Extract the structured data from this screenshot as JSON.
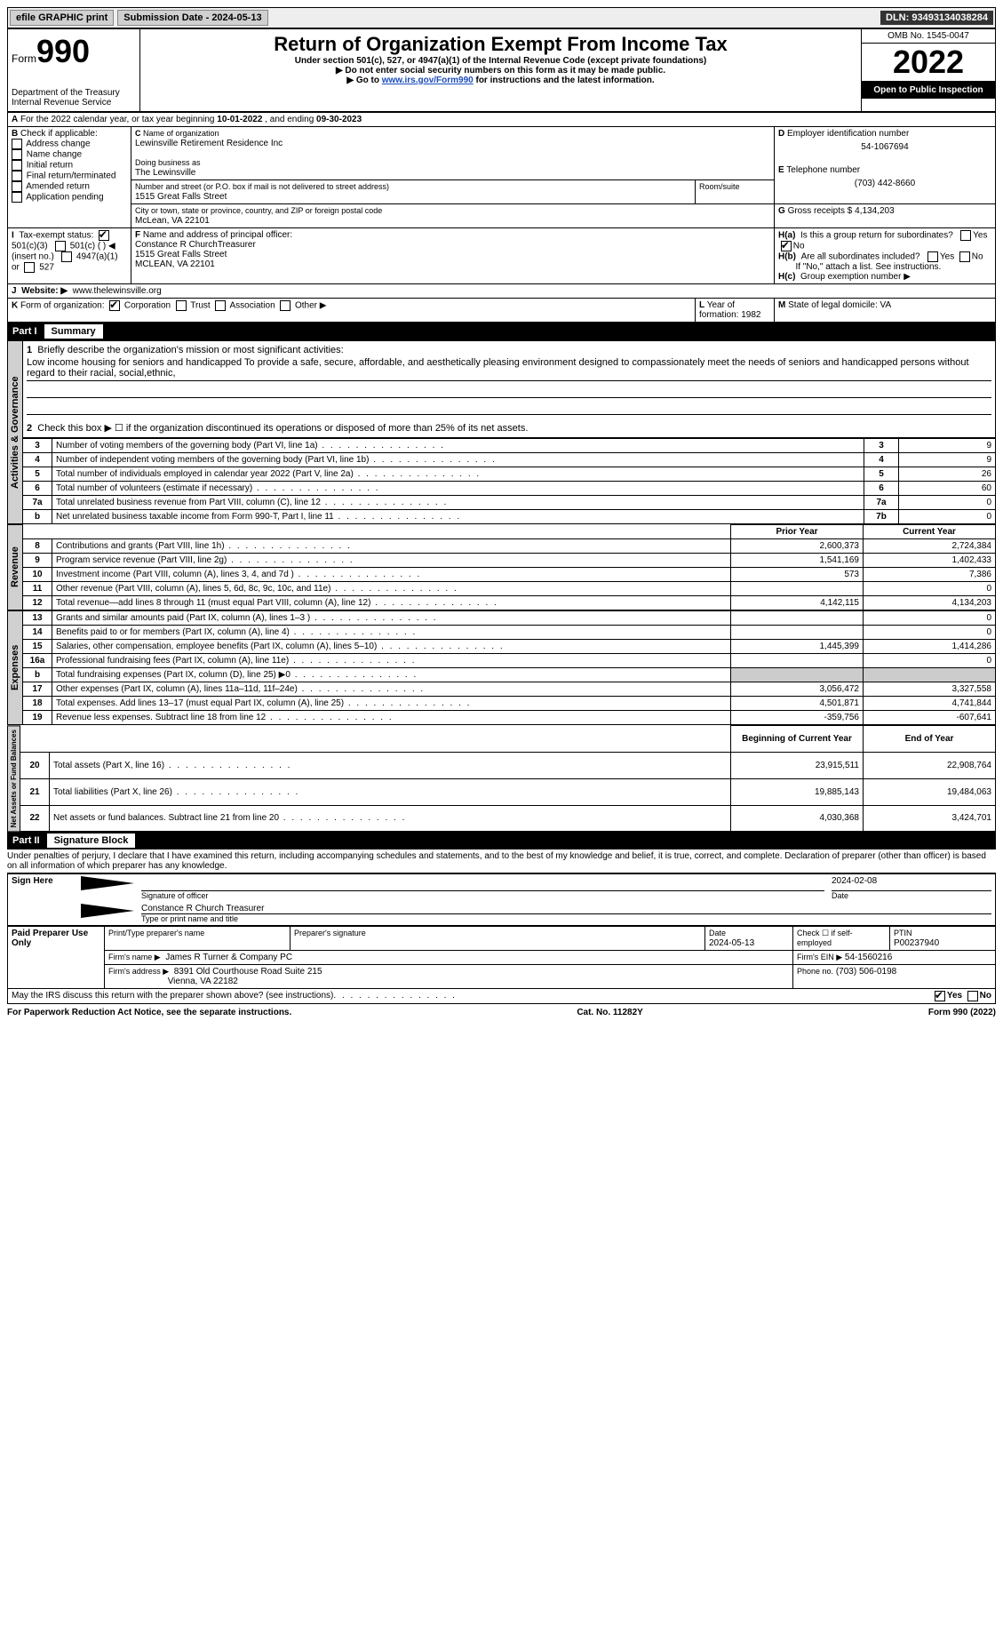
{
  "top": {
    "efile": "efile GRAPHIC print",
    "submission": "Submission Date - 2024-05-13",
    "dln": "DLN: 93493134038284"
  },
  "header": {
    "form_prefix": "Form",
    "form_number": "990",
    "dept": "Department of the Treasury",
    "irs": "Internal Revenue Service",
    "title": "Return of Organization Exempt From Income Tax",
    "sub1": "Under section 501(c), 527, or 4947(a)(1) of the Internal Revenue Code (except private foundations)",
    "sub2": "▶ Do not enter social security numbers on this form as it may be made public.",
    "sub3_pre": "▶ Go to ",
    "sub3_link": "www.irs.gov/Form990",
    "sub3_post": " for instructions and the latest information.",
    "omb": "OMB No. 1545-0047",
    "year": "2022",
    "open": "Open to Public Inspection"
  },
  "A": {
    "text": "For the 2022 calendar year, or tax year beginning ",
    "begin": "10-01-2022",
    "mid": " , and ending ",
    "end": "09-30-2023"
  },
  "B": {
    "label": "Check if applicable:",
    "opts": [
      "Address change",
      "Name change",
      "Initial return",
      "Final return/terminated",
      "Amended return",
      "Application pending"
    ]
  },
  "C": {
    "name_label": "Name of organization",
    "name": "Lewinsville Retirement Residence Inc",
    "dba_label": "Doing business as",
    "dba": "The Lewinsville",
    "street_label": "Number and street (or P.O. box if mail is not delivered to street address)",
    "room_label": "Room/suite",
    "street": "1515 Great Falls Street",
    "city_label": "City or town, state or province, country, and ZIP or foreign postal code",
    "city": "McLean, VA  22101"
  },
  "D": {
    "label": "Employer identification number",
    "value": "54-1067694"
  },
  "E": {
    "label": "Telephone number",
    "value": "(703) 442-8660"
  },
  "G": {
    "label": "Gross receipts $",
    "value": "4,134,203"
  },
  "F": {
    "label": "Name and address of principal officer:",
    "name": "Constance R ChurchTreasurer",
    "addr1": "1515 Great Falls Street",
    "addr2": "MCLEAN, VA  22101"
  },
  "H": {
    "a": "Is this a group return for subordinates?",
    "b": "Are all subordinates included?",
    "b_note": "If \"No,\" attach a list. See instructions.",
    "c": "Group exemption number ▶",
    "yes": "Yes",
    "no": "No"
  },
  "I": {
    "label": "Tax-exempt status:",
    "opts": [
      "501(c)(3)",
      "501(c) (  ) ◀ (insert no.)",
      "4947(a)(1) or",
      "527"
    ]
  },
  "J": {
    "label": "Website: ▶",
    "value": "www.thelewinsville.org"
  },
  "K": {
    "label": "Form of organization:",
    "opts": [
      "Corporation",
      "Trust",
      "Association",
      "Other ▶"
    ]
  },
  "L": {
    "label": "Year of formation:",
    "value": "1982"
  },
  "M": {
    "label": "State of legal domicile:",
    "value": "VA"
  },
  "part1": {
    "num": "Part I",
    "title": "Summary",
    "line1_label": "Briefly describe the organization's mission or most significant activities:",
    "mission": "Low income housing for seniors and handicapped To provide a safe, secure, affordable, and aesthetically pleasing environment designed to compassionately meet the needs of seniors and handicapped persons without regard to their racial, social,ethnic,",
    "line2": "Check this box ▶ ☐ if the organization discontinued its operations or disposed of more than 25% of its net assets.",
    "tabs": {
      "activities": "Activities & Governance",
      "revenue": "Revenue",
      "expenses": "Expenses",
      "netassets": "Net Assets or Fund Balances"
    },
    "rows": [
      {
        "n": "3",
        "desc": "Number of voting members of the governing body (Part VI, line 1a)",
        "box": "3",
        "val": "9"
      },
      {
        "n": "4",
        "desc": "Number of independent voting members of the governing body (Part VI, line 1b)",
        "box": "4",
        "val": "9"
      },
      {
        "n": "5",
        "desc": "Total number of individuals employed in calendar year 2022 (Part V, line 2a)",
        "box": "5",
        "val": "26"
      },
      {
        "n": "6",
        "desc": "Total number of volunteers (estimate if necessary)",
        "box": "6",
        "val": "60"
      },
      {
        "n": "7a",
        "desc": "Total unrelated business revenue from Part VIII, column (C), line 12",
        "box": "7a",
        "val": "0"
      },
      {
        "n": "b",
        "desc": "Net unrelated business taxable income from Form 990-T, Part I, line 11",
        "box": "7b",
        "val": "0"
      }
    ],
    "col_prior": "Prior Year",
    "col_current": "Current Year",
    "revenue": [
      {
        "n": "8",
        "desc": "Contributions and grants (Part VIII, line 1h)",
        "prior": "2,600,373",
        "curr": "2,724,384"
      },
      {
        "n": "9",
        "desc": "Program service revenue (Part VIII, line 2g)",
        "prior": "1,541,169",
        "curr": "1,402,433"
      },
      {
        "n": "10",
        "desc": "Investment income (Part VIII, column (A), lines 3, 4, and 7d )",
        "prior": "573",
        "curr": "7,386"
      },
      {
        "n": "11",
        "desc": "Other revenue (Part VIII, column (A), lines 5, 6d, 8c, 9c, 10c, and 11e)",
        "prior": "",
        "curr": "0"
      },
      {
        "n": "12",
        "desc": "Total revenue—add lines 8 through 11 (must equal Part VIII, column (A), line 12)",
        "prior": "4,142,115",
        "curr": "4,134,203"
      }
    ],
    "expenses": [
      {
        "n": "13",
        "desc": "Grants and similar amounts paid (Part IX, column (A), lines 1–3 )",
        "prior": "",
        "curr": "0"
      },
      {
        "n": "14",
        "desc": "Benefits paid to or for members (Part IX, column (A), line 4)",
        "prior": "",
        "curr": "0"
      },
      {
        "n": "15",
        "desc": "Salaries, other compensation, employee benefits (Part IX, column (A), lines 5–10)",
        "prior": "1,445,399",
        "curr": "1,414,286"
      },
      {
        "n": "16a",
        "desc": "Professional fundraising fees (Part IX, column (A), line 11e)",
        "prior": "",
        "curr": "0"
      },
      {
        "n": "b",
        "desc": "Total fundraising expenses (Part IX, column (D), line 25) ▶0",
        "prior": "SHADE",
        "curr": "SHADE"
      },
      {
        "n": "17",
        "desc": "Other expenses (Part IX, column (A), lines 11a–11d, 11f–24e)",
        "prior": "3,056,472",
        "curr": "3,327,558"
      },
      {
        "n": "18",
        "desc": "Total expenses. Add lines 13–17 (must equal Part IX, column (A), line 25)",
        "prior": "4,501,871",
        "curr": "4,741,844"
      },
      {
        "n": "19",
        "desc": "Revenue less expenses. Subtract line 18 from line 12",
        "prior": "-359,756",
        "curr": "-607,641"
      }
    ],
    "col_begin": "Beginning of Current Year",
    "col_end": "End of Year",
    "netassets": [
      {
        "n": "20",
        "desc": "Total assets (Part X, line 16)",
        "prior": "23,915,511",
        "curr": "22,908,764"
      },
      {
        "n": "21",
        "desc": "Total liabilities (Part X, line 26)",
        "prior": "19,885,143",
        "curr": "19,484,063"
      },
      {
        "n": "22",
        "desc": "Net assets or fund balances. Subtract line 21 from line 20",
        "prior": "4,030,368",
        "curr": "3,424,701"
      }
    ]
  },
  "part2": {
    "num": "Part II",
    "title": "Signature Block",
    "pen": "Under penalties of perjury, I declare that I have examined this return, including accompanying schedules and statements, and to the best of my knowledge and belief, it is true, correct, and complete. Declaration of preparer (other than officer) is based on all information of which preparer has any knowledge."
  },
  "sign": {
    "here": "Sign Here",
    "sig_officer": "Signature of officer",
    "date": "Date",
    "date_val": "2024-02-08",
    "name_title": "Constance R Church  Treasurer",
    "type_name": "Type or print name and title"
  },
  "paid": {
    "label": "Paid Preparer Use Only",
    "prep_name_label": "Print/Type preparer's name",
    "prep_sig_label": "Preparer's signature",
    "date_label": "Date",
    "date_val": "2024-05-13",
    "check_label": "Check ☐ if self-employed",
    "ptin_label": "PTIN",
    "ptin": "P00237940",
    "firm_name_label": "Firm's name    ▶",
    "firm_name": "James R Turner & Company PC",
    "firm_ein_label": "Firm's EIN ▶",
    "firm_ein": "54-1560216",
    "firm_addr_label": "Firm's address ▶",
    "firm_addr1": "8391 Old Courthouse Road Suite 215",
    "firm_addr2": "Vienna, VA  22182",
    "phone_label": "Phone no.",
    "phone": "(703) 506-0198"
  },
  "discuss": {
    "text": "May the IRS discuss this return with the preparer shown above? (see instructions)",
    "yes": "Yes",
    "no": "No"
  },
  "footer": {
    "left": "For Paperwork Reduction Act Notice, see the separate instructions.",
    "mid": "Cat. No. 11282Y",
    "right": "Form 990 (2022)"
  }
}
